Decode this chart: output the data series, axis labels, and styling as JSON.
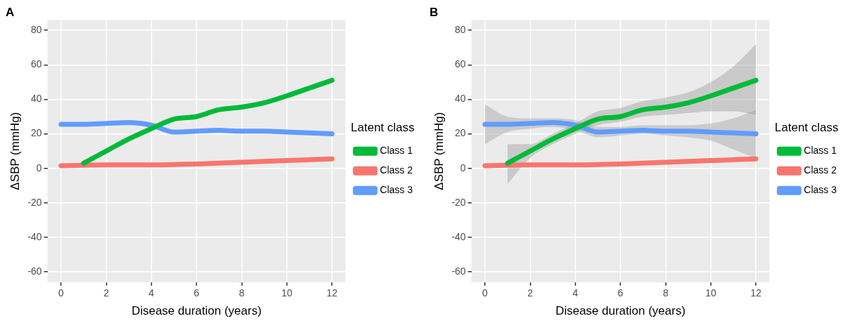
{
  "chart_data": [
    {
      "type": "line",
      "title": "A",
      "xlabel": "Disease duration (years)",
      "ylabel": "ΔSBP (mmHg)",
      "legend_title": "Latent class",
      "legend": "right",
      "grid": true,
      "xlim": [
        -0.6,
        12.6
      ],
      "ylim": [
        -66,
        86
      ],
      "xticks": [
        0,
        2,
        4,
        6,
        8,
        10,
        12
      ],
      "yticks": [
        -60,
        -40,
        -20,
        0,
        20,
        40,
        60,
        80
      ],
      "series": [
        {
          "name": "Class 1",
          "color": "#00ba38",
          "x": [
            1,
            2,
            3,
            4,
            5,
            6,
            7,
            8,
            9,
            10,
            11,
            12
          ],
          "values": [
            3,
            10,
            17,
            23,
            28.5,
            30,
            34,
            35.5,
            38,
            42,
            46.5,
            51
          ]
        },
        {
          "name": "Class 2",
          "color": "#f8766d",
          "x": [
            0,
            1,
            2,
            3,
            4,
            5,
            6,
            7,
            8,
            9,
            10,
            11,
            12
          ],
          "values": [
            1.5,
            1.8,
            2,
            2,
            2,
            2.2,
            2.5,
            3,
            3.5,
            4,
            4.5,
            5,
            5.5
          ]
        },
        {
          "name": "Class 3",
          "color": "#619cff",
          "x": [
            0,
            1,
            2,
            3,
            4,
            5,
            6,
            7,
            8,
            9,
            10,
            11,
            12
          ],
          "values": [
            25.5,
            25.5,
            26,
            26.5,
            25,
            21,
            21.5,
            22,
            21.5,
            21.5,
            21,
            20.5,
            20
          ]
        }
      ]
    },
    {
      "type": "line",
      "title": "B",
      "xlabel": "Disease duration (years)",
      "ylabel": "ΔSBP (mmHg)",
      "legend_title": "Latent class",
      "legend": "right",
      "grid": true,
      "xlim": [
        -0.6,
        12.6
      ],
      "ylim": [
        -66,
        86
      ],
      "xticks": [
        0,
        2,
        4,
        6,
        8,
        10,
        12
      ],
      "yticks": [
        -60,
        -40,
        -20,
        0,
        20,
        40,
        60,
        80
      ],
      "series": [
        {
          "name": "Class 1",
          "color": "#00ba38",
          "x": [
            1,
            2,
            3,
            4,
            5,
            6,
            7,
            8,
            9,
            10,
            11,
            12
          ],
          "values": [
            3,
            10,
            17,
            23,
            28.5,
            30,
            34,
            35.5,
            38,
            42,
            46.5,
            51
          ],
          "lower": [
            -9,
            6,
            14,
            20,
            25,
            27,
            30,
            31,
            32,
            33,
            33,
            31
          ],
          "upper": [
            14,
            14,
            20,
            26,
            33,
            35,
            39,
            41,
            44,
            50,
            59,
            72
          ]
        },
        {
          "name": "Class 2",
          "color": "#f8766d",
          "x": [
            0,
            1,
            2,
            3,
            4,
            5,
            6,
            7,
            8,
            9,
            10,
            11,
            12
          ],
          "values": [
            1.5,
            1.8,
            2,
            2,
            2,
            2.2,
            2.5,
            3,
            3.5,
            4,
            4.5,
            5,
            5.5
          ]
        },
        {
          "name": "Class 3",
          "color": "#619cff",
          "x": [
            0,
            1,
            2,
            3,
            4,
            5,
            6,
            7,
            8,
            9,
            10,
            11,
            12
          ],
          "values": [
            25.5,
            25.5,
            26,
            26.5,
            25,
            21,
            21.5,
            22,
            21.5,
            21.5,
            21,
            20.5,
            20
          ],
          "lower": [
            14,
            21,
            23,
            24,
            22,
            18,
            19,
            20,
            19,
            18,
            16,
            11,
            6
          ],
          "upper": [
            37,
            30,
            29,
            29,
            28,
            24,
            24,
            25,
            25,
            25,
            26,
            29,
            34
          ]
        }
      ]
    }
  ]
}
